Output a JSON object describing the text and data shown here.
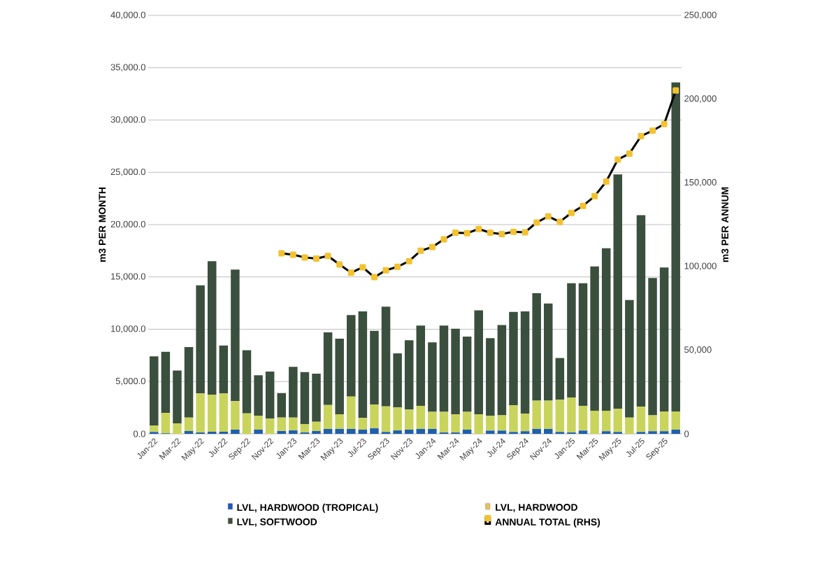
{
  "chart_data": {
    "type": "bar",
    "stacked": true,
    "ylabel": "m3 PER MONTH",
    "y2label": "m3 PER ANNUM",
    "categories": [
      "Jan-22",
      null,
      "Mar-22",
      null,
      "May-22",
      null,
      "Jul-22",
      null,
      "Sep-22",
      null,
      "Nov-22",
      null,
      "Jan-23",
      null,
      "Mar-23",
      null,
      "May-23",
      null,
      "Jul-23",
      null,
      "Sep-23",
      null,
      "Nov-23",
      null,
      "Jan-24",
      null,
      "Mar-24",
      null,
      "May-24",
      null,
      "Jul-24",
      null,
      "Sep-24",
      null,
      "Nov-24",
      null,
      "Jan-25",
      null,
      "Mar-25",
      null,
      "May-25",
      null,
      "Jul-25",
      null,
      "Sep-25",
      null
    ],
    "series": [
      {
        "name": "LVL, HARDWOOD (TROPICAL)",
        "color": "#1f5fae",
        "values": [
          180,
          50,
          0,
          270,
          130,
          200,
          200,
          400,
          0,
          400,
          0,
          270,
          330,
          130,
          270,
          470,
          470,
          470,
          400,
          530,
          180,
          330,
          400,
          470,
          470,
          130,
          130,
          400,
          0,
          310,
          310,
          180,
          250,
          470,
          470,
          180,
          130,
          310,
          0,
          250,
          180,
          0,
          180,
          250,
          250,
          400
        ]
      },
      {
        "name": "LVL, HARDWOOD",
        "color": "#c9d45c",
        "values": [
          620,
          1950,
          1000,
          1290,
          3730,
          3550,
          3660,
          2720,
          1960,
          1340,
          1450,
          1290,
          1230,
          810,
          890,
          2290,
          1400,
          3100,
          1120,
          2270,
          2450,
          2190,
          1920,
          2210,
          1630,
          1970,
          1740,
          1700,
          1870,
          1410,
          1470,
          2560,
          1690,
          2700,
          2700,
          3080,
          3330,
          2370,
          2210,
          1960,
          2210,
          1560,
          2410,
          1530,
          1890,
          1740
        ]
      },
      {
        "name": "LVL, SOFTWOOD",
        "color": "#3a4f3d",
        "values": [
          6600,
          5850,
          5050,
          6740,
          10340,
          12750,
          4590,
          12580,
          6040,
          3860,
          4500,
          2340,
          4840,
          4960,
          4590,
          6940,
          7230,
          7780,
          10180,
          7050,
          9520,
          5180,
          6630,
          7670,
          6650,
          8250,
          8180,
          7200,
          9930,
          7430,
          8620,
          8910,
          9760,
          10280,
          9280,
          3990,
          10940,
          11720,
          13790,
          15540,
          22410,
          11240,
          18310,
          13120,
          13760,
          31460
        ]
      },
      {
        "name": "ANNUAL TOTAL (RHS)",
        "type": "line",
        "axis": "y2",
        "color": "#000000",
        "marker": "square",
        "values": [
          null,
          null,
          null,
          null,
          null,
          null,
          null,
          null,
          null,
          null,
          null,
          107900,
          107000,
          105400,
          104700,
          106300,
          101200,
          96300,
          99500,
          93600,
          97700,
          99800,
          103200,
          109400,
          111600,
          116200,
          120200,
          119900,
          122400,
          120200,
          119400,
          120700,
          120400,
          126300,
          129900,
          126700,
          132000,
          136200,
          142000,
          150700,
          163900,
          167400,
          177900,
          181100,
          185100,
          205200
        ]
      }
    ],
    "ylim": [
      0,
      40000
    ],
    "yticks": [
      {
        "value": 0,
        "label": "0.0"
      },
      {
        "value": 5000,
        "label": "5,000.0"
      },
      {
        "value": 10000,
        "label": "10,000.0"
      },
      {
        "value": 15000,
        "label": "15,000.0"
      },
      {
        "value": 20000,
        "label": "20,000.0"
      },
      {
        "value": 25000,
        "label": "25,000.0"
      },
      {
        "value": 30000,
        "label": "30,000.0"
      },
      {
        "value": 35000,
        "label": "35,000.0"
      },
      {
        "value": 40000,
        "label": "40,000.0"
      }
    ],
    "y2lim": [
      0,
      250000
    ],
    "y2ticks": [
      0,
      {
        "value": 50000,
        "label": "50,000"
      },
      {
        "value": 100000,
        "label": "100,000"
      },
      {
        "value": 150000,
        "label": "150,000"
      },
      {
        "value": 200000,
        "label": "200,000"
      },
      {
        "value": 250000,
        "label": "250,000"
      }
    ],
    "grid": "y",
    "legend": "bottom"
  }
}
